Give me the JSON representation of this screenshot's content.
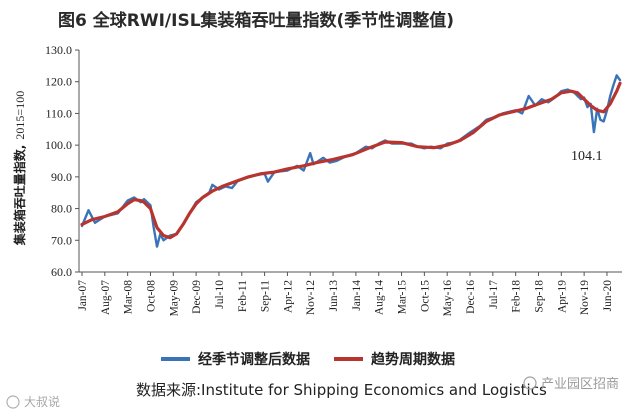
{
  "figure": {
    "title": "图6  全球RWI/ISL集装箱吞吐量指数(季节性调整值)",
    "source": "数据来源:Institute for Shipping Economics and Logistics",
    "annotation": "104.1",
    "watermark_left": "大叔说",
    "watermark_right": "产业园区招商"
  },
  "chart_data": {
    "type": "line",
    "title": "图6  全球RWI/ISL集装箱吞吐量指数(季节性调整值)",
    "ylabel_text": "集装箱吞吐量指数,",
    "ylabel_unit": "2015=100",
    "xlabel": "",
    "ylim": [
      60,
      130
    ],
    "yticks": [
      "60.0",
      "70.0",
      "80.0",
      "90.0",
      "100.0",
      "110.0",
      "120.0",
      "130.0"
    ],
    "yvalues": [
      60,
      70,
      80,
      90,
      100,
      110,
      120,
      130
    ],
    "xlim": [
      "Jan-07",
      "Oct-20"
    ],
    "xticks": [
      "Jan-07",
      "Aug-07",
      "Mar-08",
      "Oct-08",
      "May-09",
      "Dec-09",
      "Jul-10",
      "Feb-11",
      "Sep-11",
      "Apr-12",
      "Nov-12",
      "Jun-13",
      "Jan-14",
      "Aug-14",
      "Mar-15",
      "Oct-15",
      "May-16",
      "Dec-16",
      "Jul-17",
      "Feb-18",
      "Sep-18",
      "Apr-19",
      "Nov-19",
      "Jun-20"
    ],
    "grid": false,
    "legend_position": "bottom",
    "series": [
      {
        "name": "经季节调整后数据",
        "color": "#3a74b8",
        "points": [
          [
            "Jan-07",
            74.5
          ],
          [
            "Mar-07",
            79.5
          ],
          [
            "May-07",
            75.5
          ],
          [
            "Aug-07",
            77.5
          ],
          [
            "Dec-07",
            78.5
          ],
          [
            "Mar-08",
            82.5
          ],
          [
            "May-08",
            83.5
          ],
          [
            "Jul-08",
            82.0
          ],
          [
            "Aug-08",
            83.0
          ],
          [
            "Oct-08",
            81.0
          ],
          [
            "Nov-08",
            74.0
          ],
          [
            "Dec-08",
            68.0
          ],
          [
            "Jan-09",
            72.0
          ],
          [
            "Feb-09",
            70.0
          ],
          [
            "Apr-09",
            71.5
          ],
          [
            "Jun-09",
            72.0
          ],
          [
            "Aug-09",
            75.0
          ],
          [
            "Oct-09",
            78.5
          ],
          [
            "Dec-09",
            82.0
          ],
          [
            "Feb-10",
            83.5
          ],
          [
            "Apr-10",
            85.0
          ],
          [
            "May-10",
            87.5
          ],
          [
            "Jul-10",
            86.0
          ],
          [
            "Sep-10",
            87.0
          ],
          [
            "Nov-10",
            86.5
          ],
          [
            "Jan-11",
            89.0
          ],
          [
            "Mar-11",
            89.5
          ],
          [
            "Jun-11",
            90.5
          ],
          [
            "Sep-11",
            91.0
          ],
          [
            "Oct-11",
            88.5
          ],
          [
            "Dec-11",
            91.5
          ],
          [
            "Apr-12",
            92.0
          ],
          [
            "Jul-12",
            93.5
          ],
          [
            "Sep-12",
            92.0
          ],
          [
            "Nov-12",
            97.5
          ],
          [
            "Dec-12",
            94.0
          ],
          [
            "Mar-13",
            96.0
          ],
          [
            "May-13",
            94.5
          ],
          [
            "Jul-13",
            95.0
          ],
          [
            "Oct-13",
            96.5
          ],
          [
            "Jan-14",
            97.5
          ],
          [
            "Apr-14",
            99.5
          ],
          [
            "Jun-14",
            99.0
          ],
          [
            "Aug-14",
            100.5
          ],
          [
            "Oct-14",
            101.5
          ],
          [
            "Dec-14",
            100.5
          ],
          [
            "Mar-15",
            100.5
          ],
          [
            "Jun-15",
            100.5
          ],
          [
            "Aug-15",
            99.5
          ],
          [
            "Oct-15",
            99.0
          ],
          [
            "Dec-15",
            99.5
          ],
          [
            "Mar-16",
            99.0
          ],
          [
            "May-16",
            100.5
          ],
          [
            "Aug-16",
            101.0
          ],
          [
            "Oct-16",
            102.5
          ],
          [
            "Dec-16",
            104.0
          ],
          [
            "Mar-17",
            106.0
          ],
          [
            "May-17",
            108.0
          ],
          [
            "Aug-17",
            109.0
          ],
          [
            "Oct-17",
            110.0
          ],
          [
            "Dec-17",
            110.5
          ],
          [
            "Feb-18",
            111.0
          ],
          [
            "Apr-18",
            110.0
          ],
          [
            "Jun-18",
            115.5
          ],
          [
            "Aug-18",
            112.5
          ],
          [
            "Oct-18",
            114.5
          ],
          [
            "Dec-18",
            113.5
          ],
          [
            "Feb-19",
            115.0
          ],
          [
            "Apr-19",
            117.0
          ],
          [
            "Jun-19",
            117.5
          ],
          [
            "Aug-19",
            116.5
          ],
          [
            "Oct-19",
            114.5
          ],
          [
            "Nov-19",
            115.0
          ],
          [
            "Dec-19",
            112.0
          ],
          [
            "Jan-20",
            113.0
          ],
          [
            "Feb-20",
            104.1
          ],
          [
            "Mar-20",
            111.5
          ],
          [
            "Apr-20",
            108.0
          ],
          [
            "May-20",
            107.5
          ],
          [
            "Jun-20",
            111.0
          ],
          [
            "Jul-20",
            115.5
          ],
          [
            "Aug-20",
            119.0
          ],
          [
            "Sep-20",
            122.0
          ],
          [
            "Oct-20",
            120.5
          ]
        ]
      },
      {
        "name": "趋势周期数据",
        "color": "#b8342e",
        "points": [
          [
            "Jan-07",
            75.0
          ],
          [
            "Apr-07",
            76.5
          ],
          [
            "Aug-07",
            77.5
          ],
          [
            "Dec-07",
            79.0
          ],
          [
            "Mar-08",
            81.5
          ],
          [
            "May-08",
            82.8
          ],
          [
            "Jul-08",
            82.5
          ],
          [
            "Aug-08",
            82.0
          ],
          [
            "Oct-08",
            80.0
          ],
          [
            "Nov-08",
            77.0
          ],
          [
            "Dec-08",
            74.0
          ],
          [
            "Feb-09",
            71.5
          ],
          [
            "Apr-09",
            70.8
          ],
          [
            "Jun-09",
            72.0
          ],
          [
            "Aug-09",
            75.0
          ],
          [
            "Oct-09",
            78.5
          ],
          [
            "Dec-09",
            81.5
          ],
          [
            "Feb-10",
            83.5
          ],
          [
            "May-10",
            85.5
          ],
          [
            "Aug-10",
            87.0
          ],
          [
            "Dec-10",
            88.5
          ],
          [
            "Apr-11",
            90.0
          ],
          [
            "Aug-11",
            91.0
          ],
          [
            "Dec-11",
            91.5
          ],
          [
            "Apr-12",
            92.5
          ],
          [
            "Sep-12",
            93.5
          ],
          [
            "Jan-13",
            94.5
          ],
          [
            "Jun-13",
            95.5
          ],
          [
            "Dec-13",
            97.0
          ],
          [
            "Jun-14",
            99.5
          ],
          [
            "Oct-14",
            101.0
          ],
          [
            "Mar-15",
            100.8
          ],
          [
            "Aug-15",
            99.5
          ],
          [
            "Jan-16",
            99.2
          ],
          [
            "May-16",
            100.0
          ],
          [
            "Sep-16",
            101.5
          ],
          [
            "Jan-17",
            104.0
          ],
          [
            "May-17",
            107.5
          ],
          [
            "Sep-17",
            109.5
          ],
          [
            "Jan-18",
            110.5
          ],
          [
            "May-18",
            111.5
          ],
          [
            "Sep-18",
            113.0
          ],
          [
            "Jan-19",
            114.5
          ],
          [
            "Apr-19",
            116.5
          ],
          [
            "Jul-19",
            117.0
          ],
          [
            "Sep-19",
            116.5
          ],
          [
            "Nov-19",
            114.5
          ],
          [
            "Jan-20",
            112.5
          ],
          [
            "Mar-20",
            111.0
          ],
          [
            "May-20",
            110.5
          ],
          [
            "Jul-20",
            113.0
          ],
          [
            "Sep-20",
            117.0
          ],
          [
            "Oct-20",
            119.5
          ]
        ]
      }
    ]
  }
}
